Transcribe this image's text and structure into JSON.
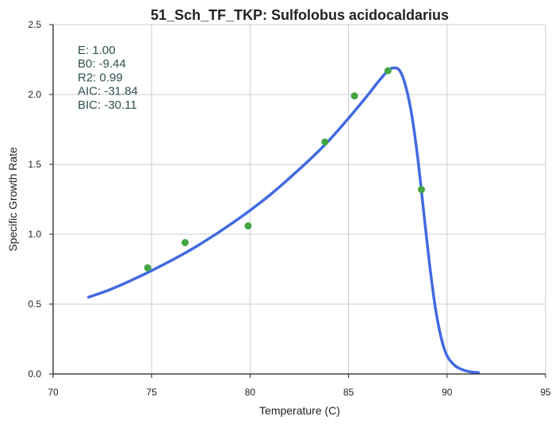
{
  "chart_data": {
    "type": "scatter",
    "title": "51_Sch_TF_TKP: Sulfolobus acidocaldarius",
    "xlabel": "Temperature (C)",
    "ylabel": "Specific Growth Rate",
    "xlim": [
      70,
      95
    ],
    "ylim": [
      0,
      2.5
    ],
    "x_ticks": [
      "70",
      "75",
      "80",
      "85",
      "90",
      "95"
    ],
    "y_ticks": [
      "0.0",
      "0.5",
      "1.0",
      "1.5",
      "2.0",
      "2.5"
    ],
    "grid": true,
    "points": [
      {
        "x": 74.8,
        "y": 0.76
      },
      {
        "x": 76.7,
        "y": 0.94
      },
      {
        "x": 79.9,
        "y": 1.06
      },
      {
        "x": 83.8,
        "y": 1.66
      },
      {
        "x": 85.3,
        "y": 1.99
      },
      {
        "x": 87.0,
        "y": 2.17
      },
      {
        "x": 88.7,
        "y": 1.32
      }
    ],
    "fit_curve": [
      {
        "x": 71.8,
        "y": 0.55
      },
      {
        "x": 73.0,
        "y": 0.61
      },
      {
        "x": 75.0,
        "y": 0.74
      },
      {
        "x": 77.0,
        "y": 0.89
      },
      {
        "x": 79.0,
        "y": 1.07
      },
      {
        "x": 81.0,
        "y": 1.28
      },
      {
        "x": 83.0,
        "y": 1.53
      },
      {
        "x": 84.0,
        "y": 1.67
      },
      {
        "x": 85.0,
        "y": 1.83
      },
      {
        "x": 86.0,
        "y": 2.0
      },
      {
        "x": 86.5,
        "y": 2.09
      },
      {
        "x": 87.0,
        "y": 2.17
      },
      {
        "x": 87.3,
        "y": 2.19
      },
      {
        "x": 87.6,
        "y": 2.17
      },
      {
        "x": 87.9,
        "y": 2.06
      },
      {
        "x": 88.2,
        "y": 1.86
      },
      {
        "x": 88.5,
        "y": 1.56
      },
      {
        "x": 88.8,
        "y": 1.18
      },
      {
        "x": 89.1,
        "y": 0.8
      },
      {
        "x": 89.4,
        "y": 0.48
      },
      {
        "x": 89.7,
        "y": 0.26
      },
      {
        "x": 90.0,
        "y": 0.13
      },
      {
        "x": 90.4,
        "y": 0.06
      },
      {
        "x": 90.8,
        "y": 0.03
      },
      {
        "x": 91.2,
        "y": 0.015
      },
      {
        "x": 91.6,
        "y": 0.01
      }
    ],
    "annotation_lines": [
      "E:  1.00",
      "B0:  -9.44",
      "R2:  0.99",
      "AIC: -31.84",
      "BIC: -30.11"
    ],
    "colors": {
      "curve": "#4169e1",
      "points": "#44a544",
      "grid": "#cccccc",
      "axis": "#222222",
      "annotation": "#2f4f4f"
    }
  }
}
